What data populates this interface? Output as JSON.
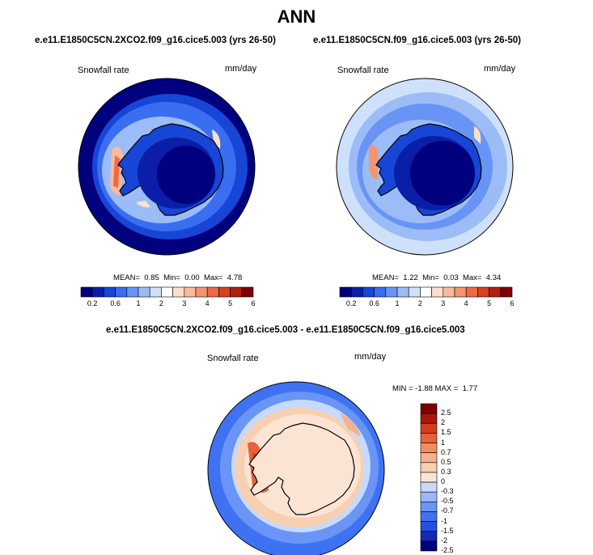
{
  "page": {
    "season": "ANN"
  },
  "panels": [
    {
      "case_title": "e.e11.E1850C5CN.2XCO2.f09_g16.cice5.003 (yrs 26-50)",
      "variable": "Snowfall rate",
      "units": "mm/day",
      "stats": {
        "mean_label": "MEAN=",
        "mean": "0.85",
        "min_label": "Min=",
        "min": "0.00",
        "max_label": "Max=",
        "max": "4.78"
      }
    },
    {
      "case_title": "e.e11.E1850C5CN.f09_g16.cice5.003 (yrs 26-50)",
      "variable": "Snowfall rate",
      "units": "mm/day",
      "stats": {
        "mean_label": "MEAN=",
        "mean": "1.22",
        "min_label": "Min=",
        "min": "0.03",
        "max_label": "Max=",
        "max": "4.34"
      }
    }
  ],
  "diff_panel": {
    "case_title": "e.e11.E1850C5CN.2XCO2.f09_g16.cice5.003 - e.e11.E1850C5CN.f09_g16.cice5.003",
    "variable": "Snowfall rate",
    "units": "mm/day",
    "stats": {
      "min_label": "MIN =",
      "min": "-1.88",
      "max_label": "MAX =",
      "max": "1.77"
    }
  },
  "colorbars": {
    "abs_colors": [
      "#00007f",
      "#0a1ea8",
      "#1746d6",
      "#3a6ef0",
      "#6894f5",
      "#9cbcf8",
      "#cfe0fb",
      "#fdfdfd",
      "#fce0cd",
      "#f8bb9c",
      "#f29570",
      "#ec6a45",
      "#d8401f",
      "#b02010",
      "#7f0000"
    ],
    "abs_tick_labels": [
      "0.2",
      "0.6",
      "1",
      "2",
      "3",
      "4",
      "5",
      "6"
    ],
    "diff_colors": [
      "#00007f",
      "#0f2bb5",
      "#2450e0",
      "#3f72f2",
      "#6a94f5",
      "#9ab8f8",
      "#c6dafb",
      "#fbe4d4",
      "#f9cfb1",
      "#f6b08a",
      "#f18c63",
      "#e8613c",
      "#d33c1e",
      "#a81709",
      "#7f0000"
    ],
    "diff_tick_labels": [
      "2.5",
      "2",
      "1.5",
      "1",
      "0.7",
      "0.5",
      "0.3",
      "0",
      "-0.3",
      "-0.5",
      "-0.7",
      "-1",
      "-1.5",
      "-2",
      "-2.5"
    ]
  },
  "chart_data": [
    {
      "type": "heatmap",
      "title": "Snowfall rate (mm/day) — e.e11.E1850C5CN.2XCO2.f09_g16.cice5.003 (yrs 26-50)",
      "projection": "south polar stereographic",
      "summary": {
        "mean": 0.85,
        "min": 0.0,
        "max": 4.78
      },
      "contour_levels": [
        0.2,
        0.4,
        0.6,
        0.8,
        1,
        1.5,
        2,
        2.5,
        3,
        3.5,
        4,
        4.5,
        5,
        6
      ],
      "pattern": "low (<0.2) over Antarctic interior and outer ring; band of 0.6-2 over Southern Ocean; local maxima 3-4.8 along Antarctic Peninsula west coast"
    },
    {
      "type": "heatmap",
      "title": "Snowfall rate (mm/day) — e.e11.E1850C5CN.f09_g16.cice5.003 (yrs 26-50)",
      "projection": "south polar stereographic",
      "summary": {
        "mean": 1.22,
        "min": 0.03,
        "max": 4.34
      },
      "contour_levels": [
        0.2,
        0.4,
        0.6,
        0.8,
        1,
        1.5,
        2,
        2.5,
        3,
        3.5,
        4,
        4.5,
        5,
        6
      ],
      "pattern": "low over interior; 0.8-2 across Southern Ocean; maxima near Antarctic Peninsula"
    },
    {
      "type": "heatmap",
      "title": "Snowfall rate difference (mm/day)",
      "projection": "south polar stereographic",
      "summary": {
        "min": -1.88,
        "max": 1.77
      },
      "contour_levels": [
        -2.5,
        -2,
        -1.5,
        -1,
        -0.7,
        -0.5,
        -0.3,
        0,
        0.3,
        0.5,
        0.7,
        1,
        1.5,
        2,
        2.5
      ],
      "pattern": "negative (-0.5 to -1.5) over outer Southern Ocean; near zero to +0.3 over continent; positive up to +1.77 along Peninsula west coast"
    }
  ]
}
